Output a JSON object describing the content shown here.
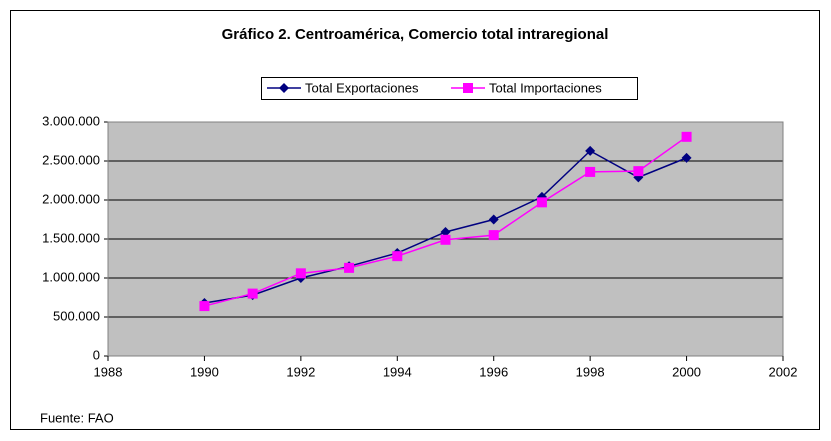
{
  "chart_data": {
    "type": "line",
    "title": "Gráfico 2. Centroamérica, Comercio total intraregional",
    "x": [
      1990,
      1991,
      1992,
      1993,
      1994,
      1995,
      1996,
      1997,
      1998,
      1999,
      2000
    ],
    "series": [
      {
        "name": "Total Exportaciones",
        "color": "#000080",
        "marker": "diamond",
        "values": [
          680000,
          780000,
          1000000,
          1150000,
          1320000,
          1590000,
          1750000,
          2040000,
          2630000,
          2290000,
          2540000
        ]
      },
      {
        "name": "Total Importaciones",
        "color": "#ff00ff",
        "marker": "square",
        "values": [
          640000,
          800000,
          1060000,
          1130000,
          1280000,
          1490000,
          1550000,
          1970000,
          2360000,
          2370000,
          2810000
        ]
      }
    ],
    "xlim": [
      1988,
      2002
    ],
    "xticks": [
      1988,
      1990,
      1992,
      1994,
      1996,
      1998,
      2000,
      2002
    ],
    "ylim": [
      0,
      3000000
    ],
    "yticks": [
      0,
      {
        "value": 500000,
        "label": "500.000"
      },
      {
        "value": 1000000,
        "label": "1.000.000"
      },
      {
        "value": 1500000,
        "label": "1.500.000"
      },
      {
        "value": 2000000,
        "label": "2.000.000"
      },
      {
        "value": 2500000,
        "label": "2.500.000"
      },
      {
        "value": 3000000,
        "label": "3.000.000"
      }
    ],
    "grid": true,
    "legend": "top",
    "source": "Fuente: FAO"
  }
}
